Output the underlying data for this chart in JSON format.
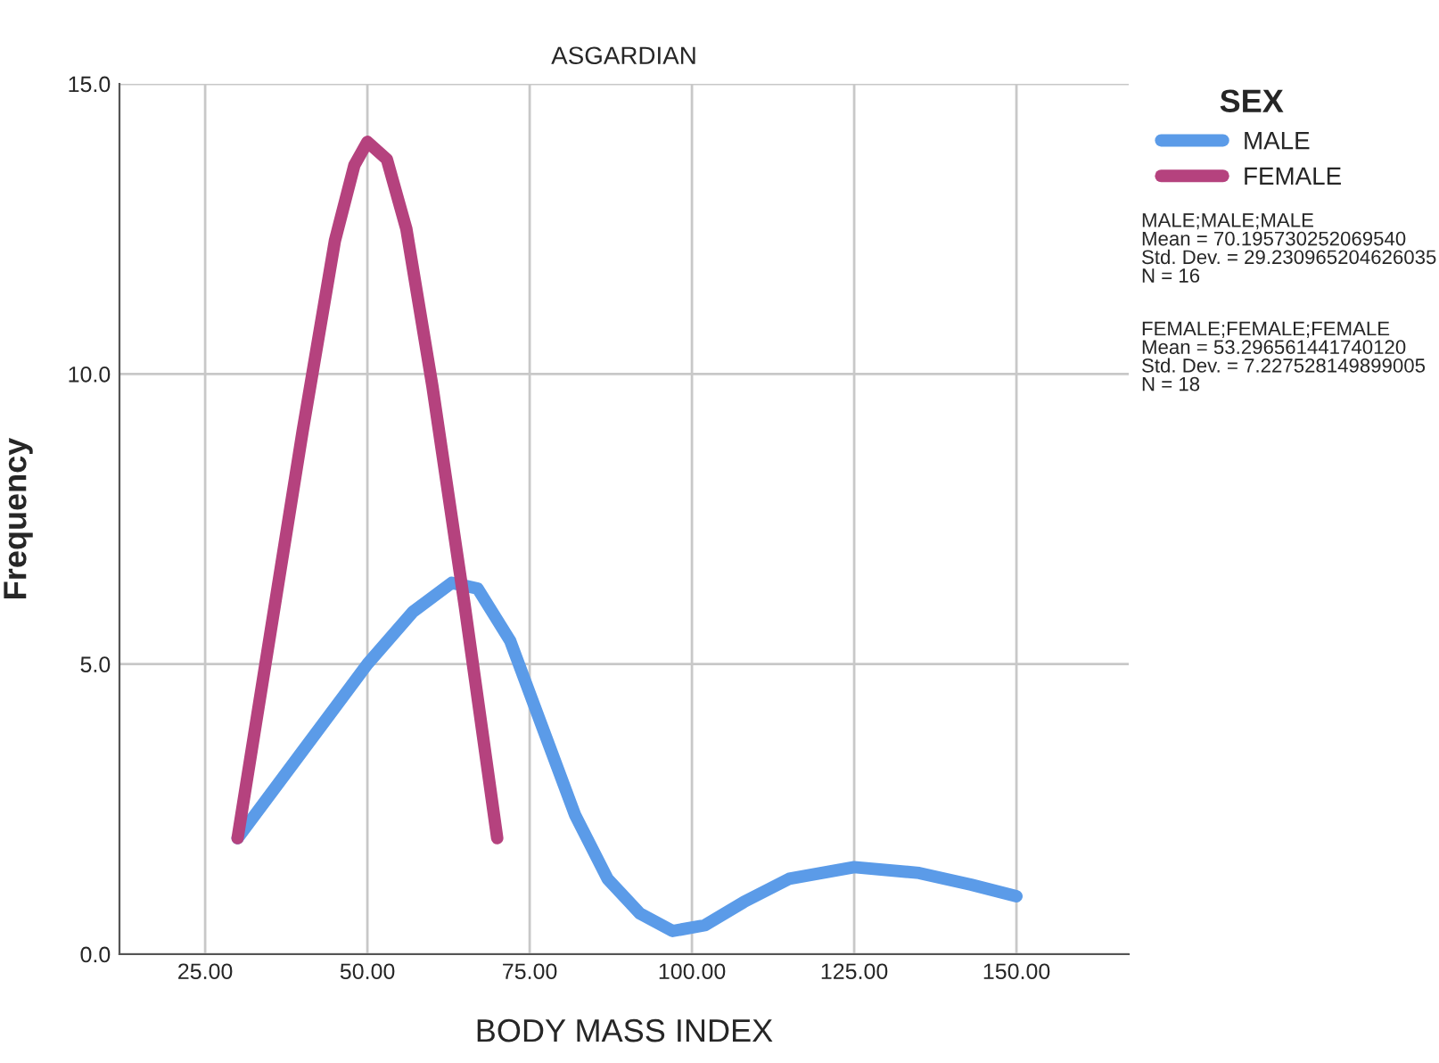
{
  "chart_data": {
    "type": "line",
    "title": "ASGARDIAN",
    "xlabel": "BODY MASS INDEX",
    "ylabel": "Frequency",
    "legend_title": "SEX",
    "legend": "top right",
    "grid": true,
    "line_style": "solid",
    "marker": "none",
    "xlim": [
      11.8,
      167.3
    ],
    "xticks": [
      {
        "value": 25,
        "label": "25.00"
      },
      {
        "value": 50,
        "label": "50.00"
      },
      {
        "value": 75,
        "label": "75.00"
      },
      {
        "value": 100,
        "label": "100.00"
      },
      {
        "value": 125,
        "label": "125.00"
      },
      {
        "value": 150,
        "label": "150.00"
      }
    ],
    "ylim": [
      0,
      15
    ],
    "yticks": [
      {
        "value": 0,
        "label": "0.0"
      },
      {
        "value": 5,
        "label": "5.0"
      },
      {
        "value": 10,
        "label": "10.0"
      },
      {
        "value": 15,
        "label": "15.0"
      }
    ],
    "series": [
      {
        "name": "MALE",
        "color": "#5b9be8",
        "x": [
          30,
          40,
          50,
          57,
          63,
          67,
          72,
          77,
          82,
          87,
          92,
          97,
          102,
          108,
          115,
          125,
          135,
          143,
          150
        ],
        "values": [
          2,
          3.5,
          5,
          5.9,
          6.4,
          6.3,
          5.4,
          3.9,
          2.4,
          1.3,
          0.7,
          0.4,
          0.5,
          0.9,
          1.3,
          1.5,
          1.4,
          1.2,
          1.0
        ]
      },
      {
        "name": "FEMALE",
        "color": "#b5427e",
        "x": [
          30,
          35,
          40,
          45,
          48,
          50,
          53,
          56,
          60,
          65,
          70
        ],
        "values": [
          2,
          5.5,
          9,
          12.3,
          13.6,
          14,
          13.7,
          12.5,
          9.8,
          6,
          2
        ]
      }
    ],
    "annotations": [
      "MALE;MALE;MALE\nMean = 70.195730252069540\nStd. Dev. = 29.230965204626035\nN = 16",
      "FEMALE;FEMALE;FEMALE\nMean = 53.296561441740120\nStd. Dev. = 7.227528149899005\nN = 18"
    ]
  }
}
